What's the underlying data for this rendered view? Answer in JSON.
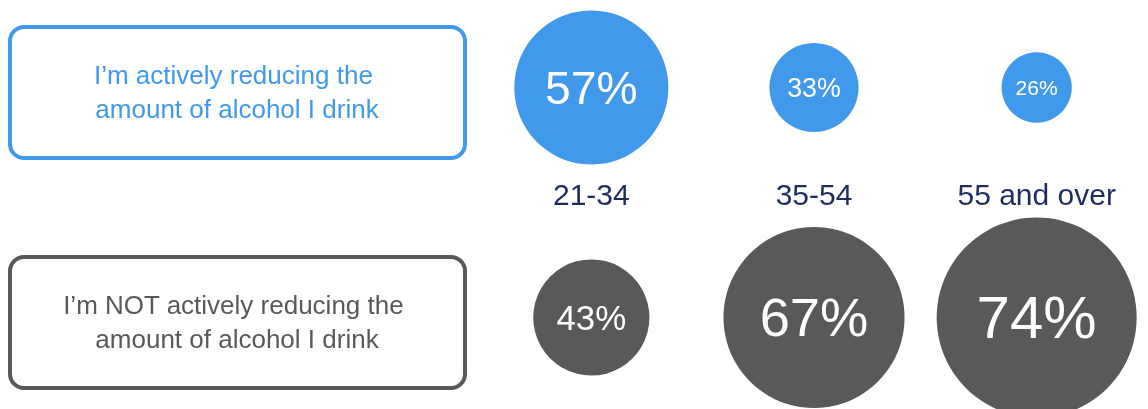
{
  "chart_data": {
    "type": "other",
    "categories": [
      "21-34",
      "35-54",
      "55 and over"
    ],
    "series": [
      {
        "name": "I’m actively reducing the amount of alcohol I drink",
        "color": "#4199ec",
        "values": [
          57,
          33,
          26
        ],
        "value_labels": [
          "57%",
          "33%",
          "26%"
        ]
      },
      {
        "name": "I’m NOT actively reducing the amount of alcohol I drink",
        "color": "#595959",
        "values": [
          43,
          67,
          74
        ],
        "value_labels": [
          "43%",
          "67%",
          "74%"
        ]
      }
    ]
  }
}
